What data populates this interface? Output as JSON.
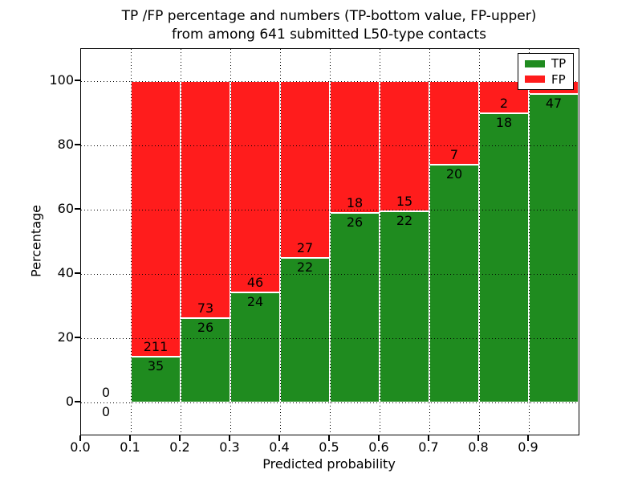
{
  "chart_data": {
    "type": "bar",
    "stacked": true,
    "normalized_to_percent": true,
    "title_line1": "TP /FP percentage and numbers (TP-bottom value, FP-upper)",
    "title_line2": "from among 641 submitted L50-type contacts",
    "total_submitted_contacts": 641,
    "xlabel": "Predicted probability",
    "ylabel": "Percentage",
    "xlim": [
      0.0,
      1.0
    ],
    "ylim": [
      -10,
      110
    ],
    "xtick_labels": [
      "0.0",
      "0.1",
      "0.2",
      "0.3",
      "0.4",
      "0.5",
      "0.6",
      "0.7",
      "0.8",
      "0.9"
    ],
    "xtick_values": [
      0.0,
      0.1,
      0.2,
      0.3,
      0.4,
      0.5,
      0.6,
      0.7,
      0.8,
      0.9
    ],
    "ytick_labels": [
      "0",
      "20",
      "40",
      "60",
      "80",
      "100"
    ],
    "ytick_values": [
      0,
      20,
      40,
      60,
      80,
      100
    ],
    "grid_style": "dotted",
    "grid_on": true,
    "legend_position": "upper right",
    "legend": {
      "items": [
        {
          "label": "TP",
          "color": "#1f8b1f"
        },
        {
          "label": "FP",
          "color": "#ff1c1c"
        }
      ]
    },
    "colors": {
      "tp": "#1f8b1f",
      "fp": "#ff1c1c",
      "bar_edge": "#ffffff"
    },
    "bins": [
      {
        "x0": 0.0,
        "x1": 0.1,
        "tp_label": "0",
        "fp_label": "0",
        "tp_pct": 0.0,
        "fp_pct": 0.0,
        "has_bar": false
      },
      {
        "x0": 0.1,
        "x1": 0.2,
        "tp_label": "35",
        "fp_label": "211",
        "tp_pct": 14.2,
        "fp_pct": 85.8,
        "has_bar": true
      },
      {
        "x0": 0.2,
        "x1": 0.3,
        "tp_label": "26",
        "fp_label": "73",
        "tp_pct": 26.3,
        "fp_pct": 73.7,
        "has_bar": true
      },
      {
        "x0": 0.3,
        "x1": 0.4,
        "tp_label": "24",
        "fp_label": "46",
        "tp_pct": 34.3,
        "fp_pct": 65.7,
        "has_bar": true
      },
      {
        "x0": 0.4,
        "x1": 0.5,
        "tp_label": "22",
        "fp_label": "27",
        "tp_pct": 44.9,
        "fp_pct": 55.1,
        "has_bar": true
      },
      {
        "x0": 0.5,
        "x1": 0.6,
        "tp_label": "26",
        "fp_label": "18",
        "tp_pct": 59.1,
        "fp_pct": 40.9,
        "has_bar": true
      },
      {
        "x0": 0.6,
        "x1": 0.7,
        "tp_label": "22",
        "fp_label": "15",
        "tp_pct": 59.5,
        "fp_pct": 40.5,
        "has_bar": true
      },
      {
        "x0": 0.7,
        "x1": 0.8,
        "tp_label": "20",
        "fp_label": "7",
        "tp_pct": 74.1,
        "fp_pct": 25.9,
        "has_bar": true
      },
      {
        "x0": 0.8,
        "x1": 0.9,
        "tp_label": "18",
        "fp_label": "2",
        "tp_pct": 90.0,
        "fp_pct": 10.0,
        "has_bar": true
      },
      {
        "x0": 0.9,
        "x1": 1.0,
        "tp_label": "47",
        "fp_label": "",
        "tp_pct": 95.9,
        "fp_pct": 4.1,
        "has_bar": true
      }
    ]
  }
}
